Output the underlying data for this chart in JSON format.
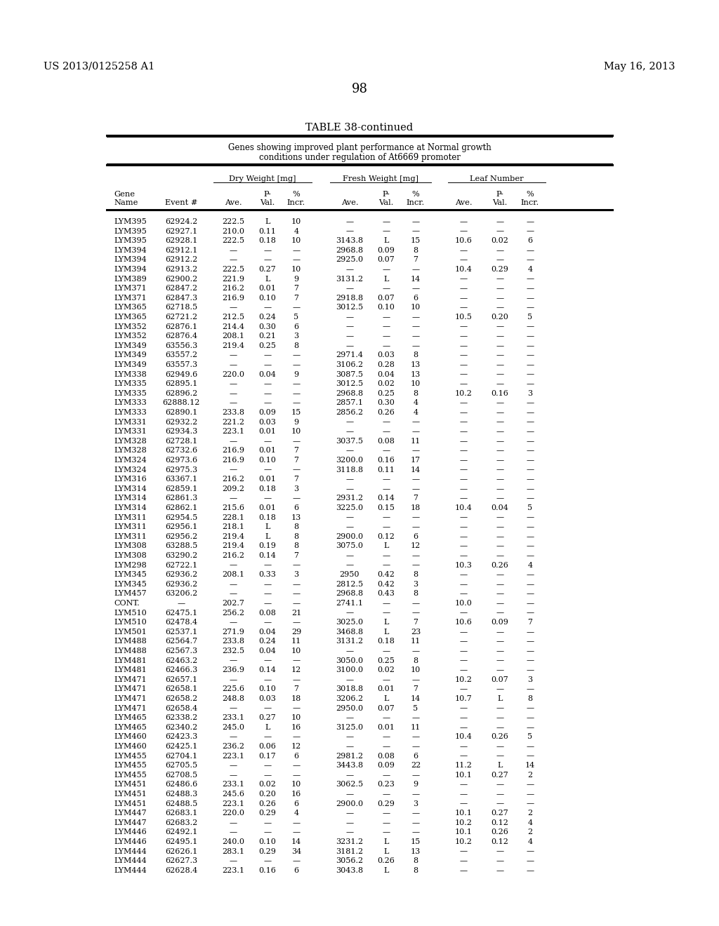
{
  "title_left": "US 2013/0125258 A1",
  "title_right": "May 16, 2013",
  "page_number": "98",
  "table_title": "TABLE 38-continued",
  "table_subtitle1": "Genes showing improved plant performance at Normal growth",
  "table_subtitle2": "conditions under regulation of At6669 promoter",
  "rows": [
    [
      "LYM395",
      "62924.2",
      "222.5",
      "L",
      "10",
      "—",
      "—",
      "—",
      "—",
      "—",
      "—"
    ],
    [
      "LYM395",
      "62927.1",
      "210.0",
      "0.11",
      "4",
      "—",
      "—",
      "—",
      "—",
      "—",
      "—"
    ],
    [
      "LYM395",
      "62928.1",
      "222.5",
      "0.18",
      "10",
      "3143.8",
      "L",
      "15",
      "10.6",
      "0.02",
      "6"
    ],
    [
      "LYM394",
      "62912.1",
      "—",
      "—",
      "—",
      "2968.8",
      "0.09",
      "8",
      "—",
      "—",
      "—"
    ],
    [
      "LYM394",
      "62912.2",
      "—",
      "—",
      "—",
      "2925.0",
      "0.07",
      "7",
      "—",
      "—",
      "—"
    ],
    [
      "LYM394",
      "62913.2",
      "222.5",
      "0.27",
      "10",
      "—",
      "—",
      "—",
      "10.4",
      "0.29",
      "4"
    ],
    [
      "LYM389",
      "62900.2",
      "221.9",
      "L",
      "9",
      "3131.2",
      "L",
      "14",
      "—",
      "—",
      "—"
    ],
    [
      "LYM371",
      "62847.2",
      "216.2",
      "0.01",
      "7",
      "—",
      "—",
      "—",
      "—",
      "—",
      "—"
    ],
    [
      "LYM371",
      "62847.3",
      "216.9",
      "0.10",
      "7",
      "2918.8",
      "0.07",
      "6",
      "—",
      "—",
      "—"
    ],
    [
      "LYM365",
      "62718.5",
      "—",
      "—",
      "—",
      "3012.5",
      "0.10",
      "10",
      "—",
      "—",
      "—"
    ],
    [
      "LYM365",
      "62721.2",
      "212.5",
      "0.24",
      "5",
      "—",
      "—",
      "—",
      "10.5",
      "0.20",
      "5"
    ],
    [
      "LYM352",
      "62876.1",
      "214.4",
      "0.30",
      "6",
      "—",
      "—",
      "—",
      "—",
      "—",
      "—"
    ],
    [
      "LYM352",
      "62876.4",
      "208.1",
      "0.21",
      "3",
      "—",
      "—",
      "—",
      "—",
      "—",
      "—"
    ],
    [
      "LYM349",
      "63556.3",
      "219.4",
      "0.25",
      "8",
      "—",
      "—",
      "—",
      "—",
      "—",
      "—"
    ],
    [
      "LYM349",
      "63557.2",
      "—",
      "—",
      "—",
      "2971.4",
      "0.03",
      "8",
      "—",
      "—",
      "—"
    ],
    [
      "LYM349",
      "63557.3",
      "—",
      "—",
      "—",
      "3106.2",
      "0.28",
      "13",
      "—",
      "—",
      "—"
    ],
    [
      "LYM338",
      "62949.6",
      "220.0",
      "0.04",
      "9",
      "3087.5",
      "0.04",
      "13",
      "—",
      "—",
      "—"
    ],
    [
      "LYM335",
      "62895.1",
      "—",
      "—",
      "—",
      "3012.5",
      "0.02",
      "10",
      "—",
      "—",
      "—"
    ],
    [
      "LYM335",
      "62896.2",
      "—",
      "—",
      "—",
      "2968.8",
      "0.25",
      "8",
      "10.2",
      "0.16",
      "3"
    ],
    [
      "LYM333",
      "62888.12",
      "—",
      "—",
      "—",
      "2857.1",
      "0.30",
      "4",
      "—",
      "—",
      "—"
    ],
    [
      "LYM333",
      "62890.1",
      "233.8",
      "0.09",
      "15",
      "2856.2",
      "0.26",
      "4",
      "—",
      "—",
      "—"
    ],
    [
      "LYM331",
      "62932.2",
      "221.2",
      "0.03",
      "9",
      "—",
      "—",
      "—",
      "—",
      "—",
      "—"
    ],
    [
      "LYM331",
      "62934.3",
      "223.1",
      "0.01",
      "10",
      "—",
      "—",
      "—",
      "—",
      "—",
      "—"
    ],
    [
      "LYM328",
      "62728.1",
      "—",
      "—",
      "—",
      "3037.5",
      "0.08",
      "11",
      "—",
      "—",
      "—"
    ],
    [
      "LYM328",
      "62732.6",
      "216.9",
      "0.01",
      "7",
      "—",
      "—",
      "—",
      "—",
      "—",
      "—"
    ],
    [
      "LYM324",
      "62973.6",
      "216.9",
      "0.10",
      "7",
      "3200.0",
      "0.16",
      "17",
      "—",
      "—",
      "—"
    ],
    [
      "LYM324",
      "62975.3",
      "—",
      "—",
      "—",
      "3118.8",
      "0.11",
      "14",
      "—",
      "—",
      "—"
    ],
    [
      "LYM316",
      "63367.1",
      "216.2",
      "0.01",
      "7",
      "—",
      "—",
      "—",
      "—",
      "—",
      "—"
    ],
    [
      "LYM314",
      "62859.1",
      "209.2",
      "0.18",
      "3",
      "—",
      "—",
      "—",
      "—",
      "—",
      "—"
    ],
    [
      "LYM314",
      "62861.3",
      "—",
      "—",
      "—",
      "2931.2",
      "0.14",
      "7",
      "—",
      "—",
      "—"
    ],
    [
      "LYM314",
      "62862.1",
      "215.6",
      "0.01",
      "6",
      "3225.0",
      "0.15",
      "18",
      "10.4",
      "0.04",
      "5"
    ],
    [
      "LYM311",
      "62954.5",
      "228.1",
      "0.18",
      "13",
      "—",
      "—",
      "—",
      "—",
      "—",
      "—"
    ],
    [
      "LYM311",
      "62956.1",
      "218.1",
      "L",
      "8",
      "—",
      "—",
      "—",
      "—",
      "—",
      "—"
    ],
    [
      "LYM311",
      "62956.2",
      "219.4",
      "L",
      "8",
      "2900.0",
      "0.12",
      "6",
      "—",
      "—",
      "—"
    ],
    [
      "LYM308",
      "63288.5",
      "219.4",
      "0.19",
      "8",
      "3075.0",
      "L",
      "12",
      "—",
      "—",
      "—"
    ],
    [
      "LYM308",
      "63290.2",
      "216.2",
      "0.14",
      "7",
      "—",
      "—",
      "—",
      "—",
      "—",
      "—"
    ],
    [
      "LYM298",
      "62722.1",
      "—",
      "—",
      "—",
      "—",
      "—",
      "—",
      "10.3",
      "0.26",
      "4"
    ],
    [
      "LYM345",
      "62936.2",
      "208.1",
      "0.33",
      "3",
      "2950",
      "0.42",
      "8",
      "—",
      "—",
      "—"
    ],
    [
      "LYM345",
      "62936.2",
      "—",
      "—",
      "—",
      "2812.5",
      "0.42",
      "3",
      "—",
      "—",
      "—"
    ],
    [
      "LYM457",
      "63206.2",
      "—",
      "—",
      "—",
      "2968.8",
      "0.43",
      "8",
      "—",
      "—",
      "—"
    ],
    [
      "CONT.",
      "—",
      "202.7",
      "—",
      "—",
      "2741.1",
      "—",
      "—",
      "10.0",
      "—",
      "—"
    ],
    [
      "LYM510",
      "62475.1",
      "256.2",
      "0.08",
      "21",
      "—",
      "—",
      "—",
      "—",
      "—",
      "—"
    ],
    [
      "LYM510",
      "62478.4",
      "—",
      "—",
      "—",
      "3025.0",
      "L",
      "7",
      "10.6",
      "0.09",
      "7"
    ],
    [
      "LYM501",
      "62537.1",
      "271.9",
      "0.04",
      "29",
      "3468.8",
      "L",
      "23",
      "—",
      "—",
      "—"
    ],
    [
      "LYM488",
      "62564.7",
      "233.8",
      "0.24",
      "11",
      "3131.2",
      "0.18",
      "11",
      "—",
      "—",
      "—"
    ],
    [
      "LYM488",
      "62567.3",
      "232.5",
      "0.04",
      "10",
      "—",
      "—",
      "—",
      "—",
      "—",
      "—"
    ],
    [
      "LYM481",
      "62463.2",
      "—",
      "—",
      "—",
      "3050.0",
      "0.25",
      "8",
      "—",
      "—",
      "—"
    ],
    [
      "LYM481",
      "62466.3",
      "236.9",
      "0.14",
      "12",
      "3100.0",
      "0.02",
      "10",
      "—",
      "—",
      "—"
    ],
    [
      "LYM471",
      "62657.1",
      "—",
      "—",
      "—",
      "—",
      "—",
      "—",
      "10.2",
      "0.07",
      "3"
    ],
    [
      "LYM471",
      "62658.1",
      "225.6",
      "0.10",
      "7",
      "3018.8",
      "0.01",
      "7",
      "—",
      "—",
      "—"
    ],
    [
      "LYM471",
      "62658.2",
      "248.8",
      "0.03",
      "18",
      "3206.2",
      "L",
      "14",
      "10.7",
      "L",
      "8"
    ],
    [
      "LYM471",
      "62658.4",
      "—",
      "—",
      "—",
      "2950.0",
      "0.07",
      "5",
      "—",
      "—",
      "—"
    ],
    [
      "LYM465",
      "62338.2",
      "233.1",
      "0.27",
      "10",
      "—",
      "—",
      "—",
      "—",
      "—",
      "—"
    ],
    [
      "LYM465",
      "62340.2",
      "245.0",
      "L",
      "16",
      "3125.0",
      "0.01",
      "11",
      "—",
      "—",
      "—"
    ],
    [
      "LYM460",
      "62423.3",
      "—",
      "—",
      "—",
      "—",
      "—",
      "—",
      "10.4",
      "0.26",
      "5"
    ],
    [
      "LYM460",
      "62425.1",
      "236.2",
      "0.06",
      "12",
      "—",
      "—",
      "—",
      "—",
      "—",
      "—"
    ],
    [
      "LYM455",
      "62704.1",
      "223.1",
      "0.17",
      "6",
      "2981.2",
      "0.08",
      "6",
      "—",
      "—",
      "—"
    ],
    [
      "LYM455",
      "62705.5",
      "—",
      "—",
      "—",
      "3443.8",
      "0.09",
      "22",
      "11.2",
      "L",
      "14"
    ],
    [
      "LYM455",
      "62708.5",
      "—",
      "—",
      "—",
      "—",
      "—",
      "—",
      "10.1",
      "0.27",
      "2"
    ],
    [
      "LYM451",
      "62486.6",
      "233.1",
      "0.02",
      "10",
      "3062.5",
      "0.23",
      "9",
      "—",
      "—",
      "—"
    ],
    [
      "LYM451",
      "62488.3",
      "245.6",
      "0.20",
      "16",
      "—",
      "—",
      "—",
      "—",
      "—",
      "—"
    ],
    [
      "LYM451",
      "62488.5",
      "223.1",
      "0.26",
      "6",
      "2900.0",
      "0.29",
      "3",
      "—",
      "—",
      "—"
    ],
    [
      "LYM447",
      "62683.1",
      "220.0",
      "0.29",
      "4",
      "—",
      "—",
      "—",
      "10.1",
      "0.27",
      "2"
    ],
    [
      "LYM447",
      "62683.2",
      "—",
      "—",
      "—",
      "—",
      "—",
      "—",
      "10.2",
      "0.12",
      "4"
    ],
    [
      "LYM446",
      "62492.1",
      "—",
      "—",
      "—",
      "—",
      "—",
      "—",
      "10.1",
      "0.26",
      "2"
    ],
    [
      "LYM446",
      "62495.1",
      "240.0",
      "0.10",
      "14",
      "3231.2",
      "L",
      "15",
      "10.2",
      "0.12",
      "4"
    ],
    [
      "LYM444",
      "62626.1",
      "283.1",
      "0.29",
      "34",
      "3181.2",
      "L",
      "13",
      "—",
      "—",
      "—"
    ],
    [
      "LYM444",
      "62627.3",
      "—",
      "—",
      "—",
      "3056.2",
      "0.26",
      "8",
      "—",
      "—",
      "—"
    ],
    [
      "LYM444",
      "62628.4",
      "223.1",
      "0.16",
      "6",
      "3043.8",
      "L",
      "8",
      "—",
      "—",
      "—"
    ]
  ]
}
